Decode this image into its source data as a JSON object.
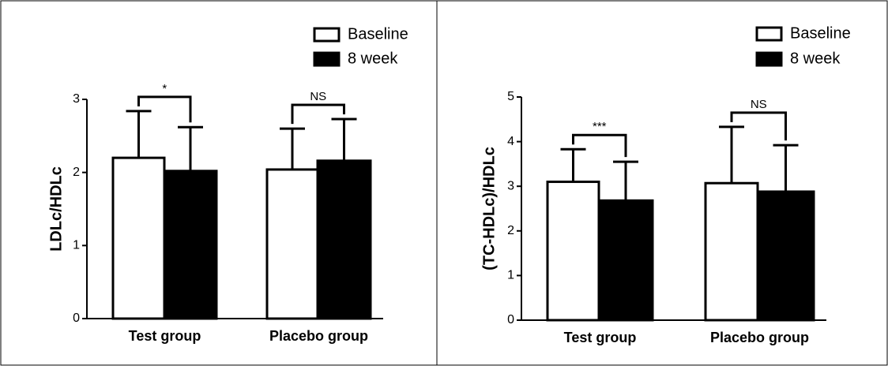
{
  "chart_data": [
    {
      "type": "bar",
      "y_label": "LDLc/HDLc",
      "categories": [
        "Test group",
        "Placebo group"
      ],
      "series": [
        {
          "name": "Baseline",
          "color": "#ffffff",
          "values": [
            2.2,
            2.04
          ],
          "errors": [
            0.64,
            0.56
          ]
        },
        {
          "name": "8 week",
          "color": "#000000",
          "values": [
            2.02,
            2.16
          ],
          "errors": [
            0.6,
            0.57
          ]
        }
      ],
      "annotations": [
        "*",
        "NS"
      ],
      "ylim": [
        0,
        3
      ],
      "yticks": [
        0,
        1,
        2,
        3
      ],
      "legend": "upper right"
    },
    {
      "type": "bar",
      "y_label": "(TC-HDLc)/HDLc",
      "categories": [
        "Test group",
        "Placebo group"
      ],
      "series": [
        {
          "name": "Baseline",
          "color": "#ffffff",
          "values": [
            3.1,
            3.07
          ],
          "errors": [
            0.73,
            1.26
          ]
        },
        {
          "name": "8 week",
          "color": "#000000",
          "values": [
            2.68,
            2.88
          ],
          "errors": [
            0.87,
            1.04
          ]
        }
      ],
      "annotations": [
        "***",
        "NS"
      ],
      "ylim": [
        0,
        5
      ],
      "yticks": [
        0,
        1,
        2,
        3,
        4,
        5
      ],
      "legend": "upper right"
    }
  ]
}
